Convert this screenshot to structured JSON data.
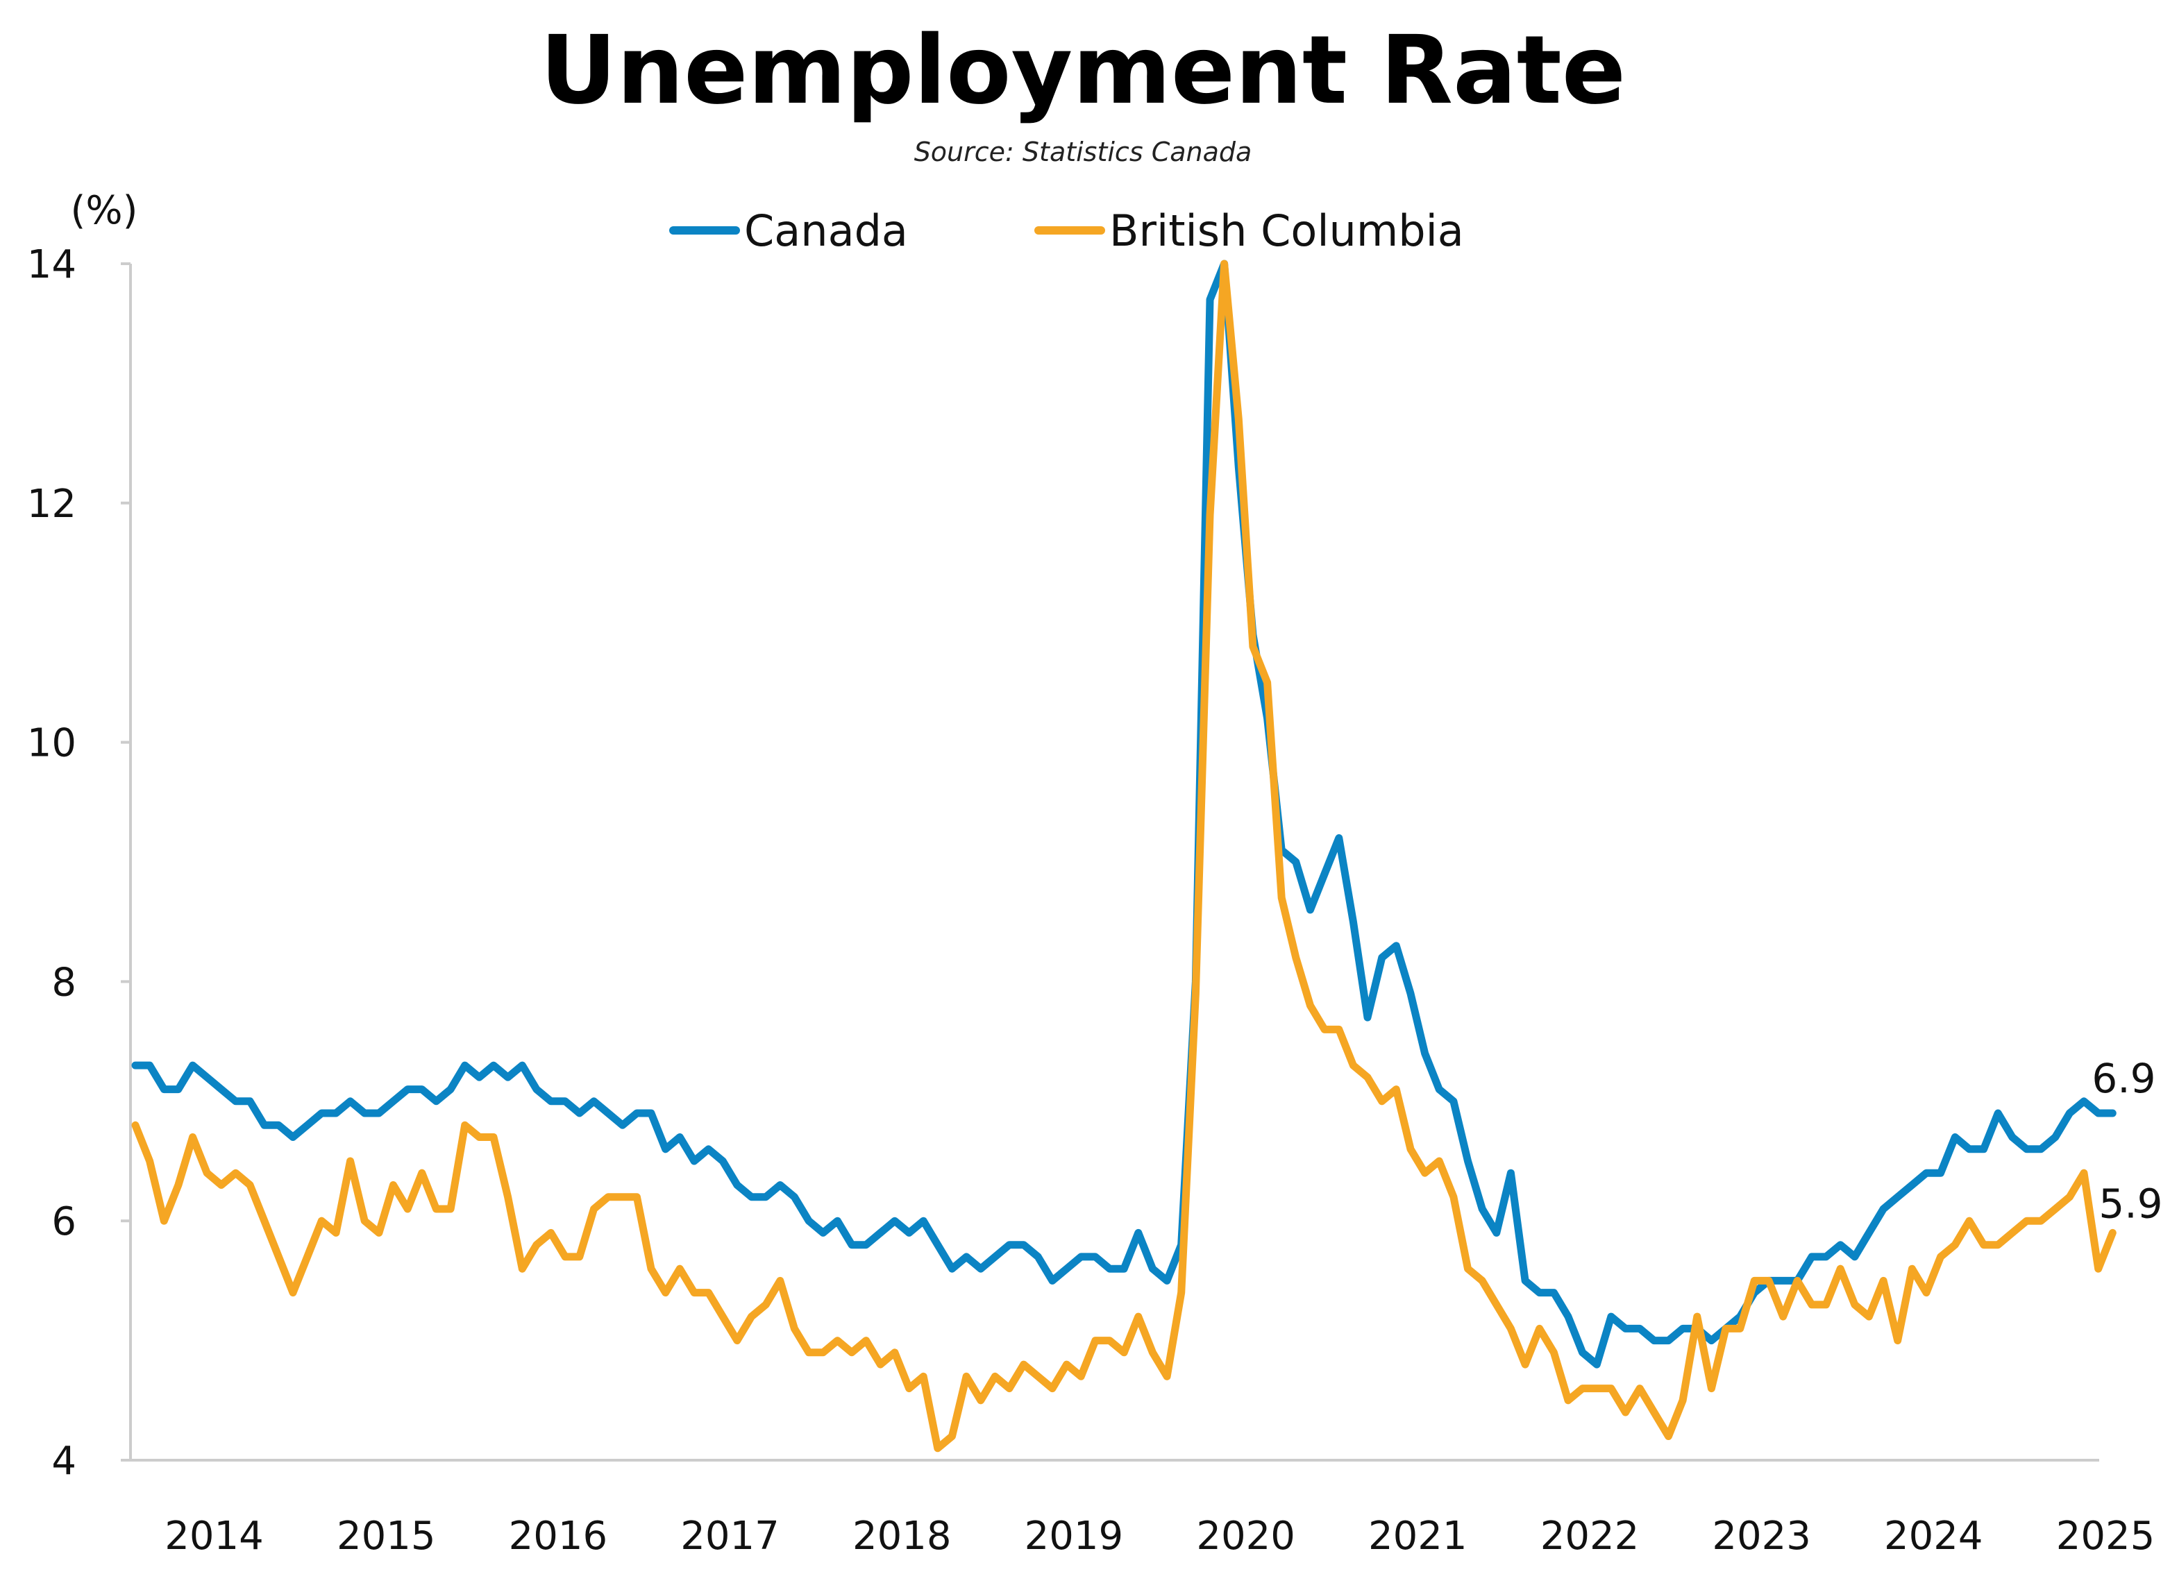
{
  "chart_data": {
    "type": "line",
    "title": "Unemployment Rate",
    "subtitle": "Source: Statistics Canada",
    "ylabel": "(%)",
    "xlabel": "",
    "ylim": [
      4,
      14
    ],
    "y_ticks": [
      "14",
      "12",
      "10",
      "8",
      "6",
      "4"
    ],
    "x_ticks": [
      "2014",
      "2015",
      "2016",
      "2017",
      "2018",
      "2019",
      "2020",
      "2021",
      "2022",
      "2023",
      "2024",
      "2025"
    ],
    "x_start": "2014-01",
    "grid": false,
    "legend_position": "top",
    "series": [
      {
        "name": "Canada",
        "color": "#0B84C4",
        "end_label": "6.9",
        "values": [
          7.3,
          7.3,
          7.1,
          7.1,
          7.3,
          7.2,
          7.1,
          7.0,
          7.0,
          6.8,
          6.8,
          6.7,
          6.8,
          6.9,
          6.9,
          7.0,
          6.9,
          6.9,
          7.0,
          7.1,
          7.1,
          7.0,
          7.1,
          7.3,
          7.2,
          7.3,
          7.2,
          7.3,
          7.1,
          7.0,
          7.0,
          6.9,
          7.0,
          6.9,
          6.8,
          6.9,
          6.9,
          6.6,
          6.7,
          6.5,
          6.6,
          6.5,
          6.3,
          6.2,
          6.2,
          6.3,
          6.2,
          6.0,
          5.9,
          6.0,
          5.8,
          5.8,
          5.9,
          6.0,
          5.9,
          6.0,
          5.8,
          5.6,
          5.7,
          5.6,
          5.7,
          5.8,
          5.8,
          5.7,
          5.5,
          5.6,
          5.7,
          5.7,
          5.6,
          5.6,
          5.9,
          5.6,
          5.5,
          5.8,
          8.0,
          13.7,
          14.0,
          12.3,
          10.9,
          10.2,
          9.1,
          9.0,
          8.6,
          8.9,
          9.2,
          8.5,
          7.7,
          8.2,
          8.3,
          7.9,
          7.4,
          7.1,
          7.0,
          6.5,
          6.1,
          5.9,
          6.4,
          5.5,
          5.4,
          5.4,
          5.2,
          4.9,
          4.8,
          5.2,
          5.1,
          5.1,
          5.0,
          5.0,
          5.1,
          5.1,
          5.0,
          5.1,
          5.2,
          5.4,
          5.5,
          5.5,
          5.5,
          5.7,
          5.7,
          5.8,
          5.7,
          5.9,
          6.1,
          6.2,
          6.3,
          6.4,
          6.4,
          6.7,
          6.6,
          6.6,
          6.9,
          6.7,
          6.6,
          6.6,
          6.7,
          6.9,
          7.0,
          6.9,
          6.9
        ]
      },
      {
        "name": "British Columbia",
        "color": "#F5A623",
        "end_label": "5.9",
        "values": [
          6.8,
          6.5,
          6.0,
          6.3,
          6.7,
          6.4,
          6.3,
          6.4,
          6.3,
          6.0,
          5.7,
          5.4,
          5.7,
          6.0,
          5.9,
          6.5,
          6.0,
          5.9,
          6.3,
          6.1,
          6.4,
          6.1,
          6.1,
          6.8,
          6.7,
          6.7,
          6.2,
          5.6,
          5.8,
          5.9,
          5.7,
          5.7,
          6.1,
          6.2,
          6.2,
          6.2,
          5.6,
          5.4,
          5.6,
          5.4,
          5.4,
          5.2,
          5.0,
          5.2,
          5.3,
          5.5,
          5.1,
          4.9,
          4.9,
          5.0,
          4.9,
          5.0,
          4.8,
          4.9,
          4.6,
          4.7,
          4.1,
          4.2,
          4.7,
          4.5,
          4.7,
          4.6,
          4.8,
          4.7,
          4.6,
          4.8,
          4.7,
          5.0,
          5.0,
          4.9,
          5.2,
          4.9,
          4.7,
          5.4,
          7.9,
          11.9,
          14.0,
          12.7,
          10.8,
          10.5,
          8.7,
          8.2,
          7.8,
          7.6,
          7.6,
          7.3,
          7.2,
          7.0,
          7.1,
          6.6,
          6.4,
          6.5,
          6.2,
          5.6,
          5.5,
          5.3,
          5.1,
          4.8,
          5.1,
          4.9,
          4.5,
          4.6,
          4.6,
          4.6,
          4.4,
          4.6,
          4.4,
          4.2,
          4.5,
          5.2,
          4.6,
          5.1,
          5.1,
          5.5,
          5.5,
          5.2,
          5.5,
          5.3,
          5.3,
          5.6,
          5.3,
          5.2,
          5.5,
          5.0,
          5.6,
          5.4,
          5.7,
          5.8,
          6.0,
          5.8,
          5.8,
          5.9,
          6.0,
          6.0,
          6.1,
          6.2,
          6.4,
          5.6,
          5.9
        ]
      }
    ]
  }
}
